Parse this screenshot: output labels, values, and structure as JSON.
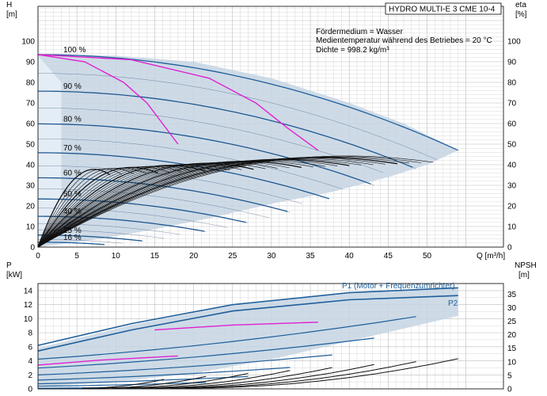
{
  "title_box": "HYDRO MULTI-E 3 CME 10-4",
  "info_lines": [
    "Fördermedium = Wasser",
    "Medientemperatur während des Betriebes = 20 °C",
    "Dichte = 998.2 kg/m³"
  ],
  "top": {
    "ylabel_left": "H",
    "yunit_left": "[m]",
    "ylabel_right": "eta",
    "yunit_right": "[%]",
    "xlabel": "Q [m³/h]",
    "yticks": [
      "0",
      "10",
      "20",
      "30",
      "40",
      "50",
      "60",
      "70",
      "80",
      "90",
      "100"
    ],
    "xticks": [
      "0",
      "5",
      "10",
      "15",
      "20",
      "25",
      "30",
      "35",
      "40",
      "45",
      "50"
    ]
  },
  "bottom": {
    "ylabel_left": "P",
    "yunit_left": "[kW]",
    "ylabel_right": "NPSH",
    "yunit_right": "[m]",
    "yticks_left": [
      "0",
      "2",
      "4",
      "6",
      "8",
      "10",
      "12",
      "14"
    ],
    "yticks_right": [
      "0",
      "5",
      "10",
      "15",
      "20",
      "25",
      "30",
      "35"
    ],
    "series_p1": "P1 (Motor + Frequenzumrichter)",
    "series_p2": "P2"
  },
  "colors": {
    "speed_curve": "#1f5f9a",
    "efficiency": "#111111",
    "limit": "#e020d0",
    "envelope": "#c6d5e3",
    "grid": "#bdbdbd"
  },
  "chart_data": [
    {
      "type": "line",
      "xlabel": "Q [m³/h]",
      "ylabel": "H [m]",
      "xlim": [
        0,
        54
      ],
      "ylim": [
        0,
        100
      ],
      "speed_labels": [
        "100 %",
        "90 %",
        "80 %",
        "70 %",
        "60 %",
        "50 %",
        "40 %",
        "25 %",
        "16 %"
      ],
      "speed_fractions": [
        1.0,
        0.9,
        0.8,
        0.7,
        0.6,
        0.5,
        0.4,
        0.25,
        0.16
      ],
      "h_shutoff": 93.5,
      "q_max_full": 54,
      "envelope_upper": [
        [
          0,
          93.5
        ],
        [
          10,
          93
        ],
        [
          20,
          90
        ],
        [
          30,
          82
        ],
        [
          40,
          70
        ],
        [
          47,
          60
        ],
        [
          54,
          47
        ]
      ],
      "envelope_lower": [
        [
          0,
          0
        ],
        [
          8,
          4
        ],
        [
          14,
          8
        ],
        [
          22,
          14
        ],
        [
          30,
          21
        ],
        [
          38,
          27
        ],
        [
          45,
          34
        ],
        [
          50,
          40
        ],
        [
          54,
          47
        ]
      ]
    },
    {
      "type": "line",
      "xlabel": "Q [m³/h]",
      "ylabel": "P [kW]",
      "ylim": [
        0,
        15
      ],
      "series": [
        {
          "name": "P1 (Motor + Frequenzumrichter)",
          "values": [
            6.2,
            9.3,
            12.0,
            13.7,
            14.4
          ]
        },
        {
          "name": "P2",
          "values": [
            5.4,
            8.4,
            11.1,
            12.7,
            13.3
          ]
        }
      ],
      "x": [
        0,
        12,
        25,
        40,
        54
      ]
    }
  ]
}
